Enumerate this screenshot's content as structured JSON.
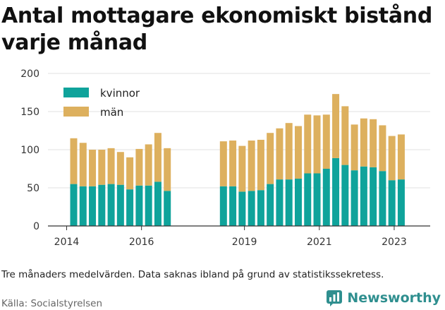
{
  "chart_data": {
    "type": "bar",
    "stacked": true,
    "title": "Antal mottagare ekonomiskt bistånd varje månad",
    "xlabel": "",
    "ylabel": "",
    "ylim": [
      0,
      200
    ],
    "yticks": [
      0,
      50,
      100,
      150,
      200
    ],
    "grid": true,
    "legend_position": "top-left",
    "x_tick_labels": [
      "2014",
      "2016",
      "2019",
      "2021",
      "2023"
    ],
    "series": [
      {
        "name": "kvinnor",
        "color": "#0fa39b",
        "values": [
          55,
          52,
          52,
          54,
          55,
          54,
          48,
          53,
          53,
          58,
          46,
          null,
          null,
          null,
          null,
          null,
          52,
          52,
          45,
          46,
          47,
          55,
          61,
          61,
          62,
          69,
          69,
          75,
          89,
          80,
          73,
          78,
          77,
          72,
          60,
          61
        ]
      },
      {
        "name": "män",
        "color": "#ddb05e",
        "values": [
          60,
          57,
          48,
          46,
          47,
          43,
          42,
          48,
          54,
          64,
          56,
          null,
          null,
          null,
          null,
          null,
          59,
          60,
          60,
          66,
          66,
          67,
          67,
          74,
          69,
          77,
          76,
          71,
          84,
          77,
          60,
          63,
          63,
          60,
          58,
          59
        ]
      }
    ]
  },
  "note": "Tre månaders medelvärden. Data saknas ibland på grund av statistikssekretess.",
  "source": "Källa: Socialstyrelsen",
  "brand": {
    "name": "Newsworthy",
    "color": "#2f8f8f"
  }
}
